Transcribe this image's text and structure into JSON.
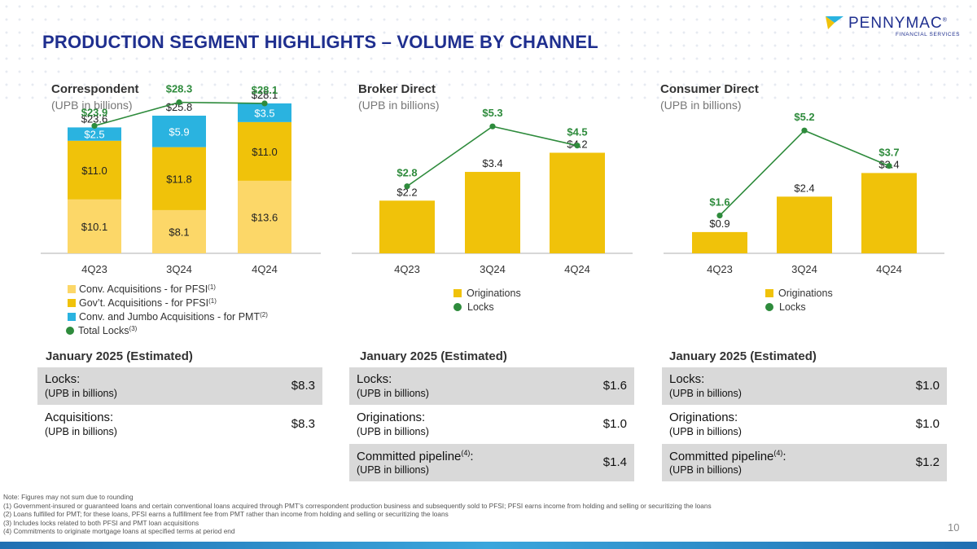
{
  "header": {
    "title": "PRODUCTION SEGMENT HIGHLIGHTS – VOLUME BY CHANNEL",
    "logo_name": "PENNYMAC",
    "logo_sub": "FINANCIAL SERVICES",
    "logo_trademark": "®"
  },
  "colors": {
    "title_blue": "#1f2f8f",
    "conv_light_yellow": "#fcd768",
    "govt_yellow": "#f0c20a",
    "jumbo_blue": "#2ab3e0",
    "locks_green": "#2e8b3c",
    "originations_yellow": "#f0c20a"
  },
  "chart_data": [
    {
      "type": "bar",
      "stacked": true,
      "title": "Correspondent",
      "subtitle": "(UPB in billions)",
      "categories": [
        "4Q23",
        "3Q24",
        "4Q24"
      ],
      "series": [
        {
          "name": "Conv. Acquisitions - for PFSI",
          "sup": "(1)",
          "values": [
            10.1,
            8.1,
            13.6
          ],
          "labels": [
            "$10.1",
            "$8.1",
            "$13.6"
          ]
        },
        {
          "name": "Gov’t. Acquisitions - for PFSI",
          "sup": "(1)",
          "values": [
            11.0,
            11.8,
            11.0
          ],
          "labels": [
            "$11.0",
            "$11.8",
            "$11.0"
          ]
        },
        {
          "name": "Conv. and Jumbo Acquisitions - for PMT",
          "sup": "(2)",
          "values": [
            2.5,
            5.9,
            3.5
          ],
          "labels": [
            "$2.5",
            "$5.9",
            "$3.5"
          ]
        }
      ],
      "totals": {
        "values": [
          23.6,
          25.8,
          28.1
        ],
        "labels": [
          "$23.6",
          "$25.8",
          "$28.1"
        ]
      },
      "line": {
        "name": "Total Locks",
        "sup": "(3)",
        "values": [
          23.9,
          28.3,
          28.1
        ],
        "labels": [
          "$23.9",
          "$28.3",
          "$28.1"
        ]
      },
      "ylim": [
        0,
        36
      ]
    },
    {
      "type": "bar",
      "title": "Broker Direct",
      "subtitle": "(UPB in billions)",
      "categories": [
        "4Q23",
        "3Q24",
        "4Q24"
      ],
      "series": [
        {
          "name": "Originations",
          "values": [
            2.2,
            3.4,
            4.2
          ],
          "labels": [
            "$2.2",
            "$3.4",
            "$4.2"
          ]
        }
      ],
      "line": {
        "name": "Locks",
        "values": [
          2.8,
          5.3,
          4.5
        ],
        "labels": [
          "$2.8",
          "$5.3",
          "$4.5"
        ]
      },
      "ylim": [
        0,
        6.8
      ]
    },
    {
      "type": "bar",
      "title": "Consumer Direct",
      "subtitle": "(UPB in billions)",
      "categories": [
        "4Q23",
        "3Q24",
        "4Q24"
      ],
      "series": [
        {
          "name": "Originations",
          "values": [
            0.9,
            2.4,
            3.4
          ],
          "labels": [
            "$0.9",
            "$2.4",
            "$3.4"
          ]
        }
      ],
      "line": {
        "name": "Locks",
        "values": [
          1.6,
          5.2,
          3.7
        ],
        "labels": [
          "$1.6",
          "$5.2",
          "$3.7"
        ]
      },
      "ylim": [
        0,
        6.6
      ]
    }
  ],
  "estimates": [
    {
      "title": "January 2025  (Estimated)",
      "rows": [
        {
          "label": "Locks:",
          "sup": "",
          "label_after": "",
          "sub": "(UPB in billions)",
          "value": "$8.3"
        },
        {
          "label": "Acquisitions:",
          "sup": "",
          "label_after": "",
          "sub": "(UPB in billions)",
          "value": "$8.3"
        }
      ]
    },
    {
      "title": "January 2025  (Estimated)",
      "rows": [
        {
          "label": "Locks:",
          "sup": "",
          "label_after": "",
          "sub": "(UPB in billions)",
          "value": "$1.6"
        },
        {
          "label": "Originations:",
          "sup": "",
          "label_after": "",
          "sub": "(UPB in billions)",
          "value": "$1.0"
        },
        {
          "label": "Committed pipeline",
          "sup": "(4)",
          "label_after": ":",
          "sub": "(UPB in billions)",
          "value": "$1.4"
        }
      ]
    },
    {
      "title": "January 2025  (Estimated)",
      "rows": [
        {
          "label": "Locks:",
          "sup": "",
          "label_after": "",
          "sub": "(UPB in billions)",
          "value": "$1.0"
        },
        {
          "label": "Originations:",
          "sup": "",
          "label_after": "",
          "sub": "(UPB in billions)",
          "value": "$1.0"
        },
        {
          "label": "Committed pipeline",
          "sup": "(4)",
          "label_after": ":",
          "sub": "(UPB in billions)",
          "value": "$1.2"
        }
      ]
    }
  ],
  "footnotes": [
    "Note: Figures may not sum due to rounding",
    "(1) Government-insured or guaranteed loans and certain conventional loans acquired through PMT’s correspondent production business and subsequently sold to PFSI; PFSI earns income from holding and selling or securitizing the loans",
    "(2) Loans fulfilled for PMT; for these loans, PFSI earns a fulfillment fee from PMT rather than income from holding and selling or securitizing the loans",
    "(3) Includes locks related to both PFSI and PMT loan acquisitions",
    "(4) Commitments to originate mortgage loans at specified terms at period end"
  ],
  "page_number": "10"
}
